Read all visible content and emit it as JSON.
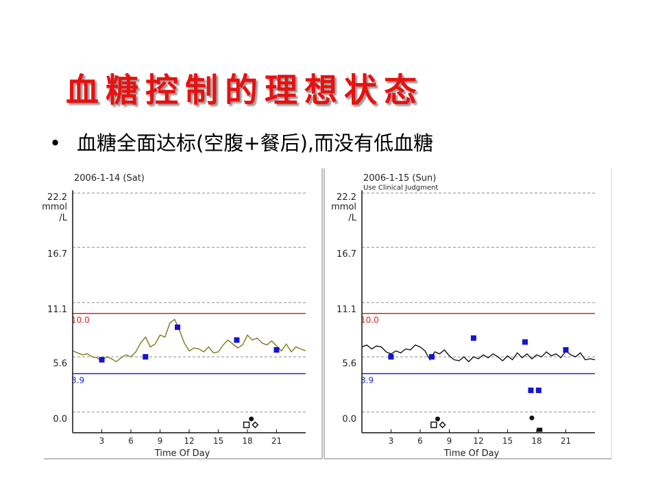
{
  "slide": {
    "title": "血糖控制的理想状态",
    "bullet": "血糖全面达标(空腹+餐后),而没有低血糖"
  },
  "colors": {
    "title": "#e81010",
    "upper_limit": "#e02020",
    "lower_limit": "#2020d8",
    "sat_trace": "#7a7a1a",
    "sun_trace": "#111111",
    "meter_point": "#1414d4"
  },
  "chart_data": [
    {
      "type": "line",
      "title": "2006-1-14 (Sat)",
      "subtitle": "",
      "xlabel": "Time Of Day",
      "ylabel": "mmol /L",
      "ylabel_lines": [
        "mmol",
        "/L"
      ],
      "xlim": [
        0,
        24
      ],
      "ylim": [
        -2.1,
        22.2
      ],
      "xticks": [
        "3",
        "6",
        "9",
        "12",
        "15",
        "18",
        "21"
      ],
      "yticks": [
        "22.2",
        "16.7",
        "11.1",
        "5.6",
        "0.0"
      ],
      "limit_lines": [
        {
          "label": "10.0",
          "value": 10.0,
          "role": "upper"
        },
        {
          "label": "3.9",
          "value": 3.9,
          "role": "lower"
        }
      ],
      "grid": "dashed-horizontal",
      "series": [
        {
          "kind": "sensor_trace",
          "x": [
            0,
            0.5,
            1,
            1.5,
            2,
            2.5,
            3,
            3.5,
            4,
            4.5,
            5,
            5.5,
            6,
            6.5,
            7,
            7.5,
            8,
            8.5,
            9,
            9.5,
            10,
            10.5,
            11,
            11.5,
            12,
            12.5,
            13,
            13.5,
            14,
            14.5,
            15,
            15.5,
            16,
            16.5,
            17,
            17.5,
            18,
            18.5,
            19,
            19.5,
            20,
            20.5,
            21,
            21.5,
            22,
            22.5,
            23,
            23.5,
            24
          ],
          "values": [
            6.2,
            6.0,
            5.8,
            5.9,
            5.6,
            5.5,
            5.2,
            5.6,
            5.4,
            5.1,
            5.5,
            5.8,
            5.6,
            6.1,
            7.0,
            7.6,
            6.6,
            6.9,
            7.8,
            7.6,
            9.0,
            9.4,
            8.3,
            7.0,
            6.2,
            6.5,
            6.4,
            6.1,
            6.6,
            6.0,
            6.1,
            6.8,
            7.3,
            6.9,
            6.5,
            6.8,
            7.8,
            7.3,
            7.5,
            7.0,
            6.8,
            7.2,
            6.7,
            6.2,
            6.9,
            6.1,
            6.6,
            6.4,
            6.2
          ]
        },
        {
          "kind": "meter_readings",
          "x": [
            3.0,
            7.5,
            10.8,
            16.9,
            21.0
          ],
          "values": [
            5.3,
            5.6,
            8.6,
            7.3,
            6.3
          ]
        }
      ],
      "event_markers": [
        {
          "type": "square",
          "x": 17.9,
          "y": -1.3
        },
        {
          "type": "dot",
          "x": 18.4,
          "y": -0.7
        },
        {
          "type": "diamond",
          "x": 18.8,
          "y": -1.3
        }
      ]
    },
    {
      "type": "line",
      "title": "2006-1-15 (Sun)",
      "subtitle": "Use Clinical Judgment",
      "xlabel": "Time Of Day",
      "ylabel": "mmol /L",
      "ylabel_lines": [
        "mmol",
        "/L"
      ],
      "xlim": [
        0,
        24
      ],
      "ylim": [
        -2.1,
        22.2
      ],
      "xticks": [
        "3",
        "6",
        "9",
        "12",
        "15",
        "18",
        "21"
      ],
      "yticks": [
        "22.2",
        "16.7",
        "11.1",
        "5.6",
        "0.0"
      ],
      "limit_lines": [
        {
          "label": "10.0",
          "value": 10.0,
          "role": "upper"
        },
        {
          "label": "3.9",
          "value": 3.9,
          "role": "lower"
        }
      ],
      "grid": "dashed-horizontal",
      "series": [
        {
          "kind": "sensor_trace",
          "x": [
            0,
            0.5,
            1,
            1.5,
            2,
            2.5,
            3,
            3.5,
            4,
            4.5,
            5,
            5.5,
            6,
            6.5,
            7,
            7.5,
            8,
            8.5,
            9,
            9.5,
            10,
            10.5,
            11,
            11.5,
            12,
            12.5,
            13,
            13.5,
            14,
            14.5,
            15,
            15.5,
            16,
            16.5,
            17,
            17.5,
            18,
            18.5,
            19,
            19.5,
            20,
            20.5,
            21,
            21.5,
            22,
            22.5,
            23,
            23.5,
            24
          ],
          "values": [
            6.6,
            6.8,
            6.4,
            6.7,
            6.6,
            6.1,
            5.9,
            6.2,
            6.0,
            6.4,
            6.3,
            6.8,
            6.6,
            6.2,
            5.3,
            6.1,
            5.9,
            6.3,
            5.7,
            5.3,
            5.2,
            5.6,
            5.1,
            5.6,
            5.4,
            5.8,
            5.5,
            5.9,
            5.6,
            5.2,
            5.7,
            5.3,
            6.0,
            5.5,
            5.9,
            5.4,
            5.8,
            5.6,
            6.1,
            5.7,
            5.9,
            5.5,
            6.2,
            5.8,
            5.6,
            6.0,
            5.3,
            5.4,
            5.3
          ]
        },
        {
          "kind": "meter_readings",
          "x": [
            3.0,
            7.2,
            11.5,
            16.8,
            17.4,
            18.2,
            21.0
          ],
          "values": [
            5.6,
            5.6,
            7.5,
            7.1,
            2.2,
            2.2,
            6.3
          ]
        }
      ],
      "event_markers": [
        {
          "type": "square",
          "x": 7.4,
          "y": -1.3
        },
        {
          "type": "dot",
          "x": 7.8,
          "y": -0.7
        },
        {
          "type": "diamond",
          "x": 8.3,
          "y": -1.3
        },
        {
          "type": "dot",
          "x": 17.5,
          "y": -0.6
        },
        {
          "type": "black-square",
          "x": 18.3,
          "y": -1.8
        }
      ]
    }
  ]
}
